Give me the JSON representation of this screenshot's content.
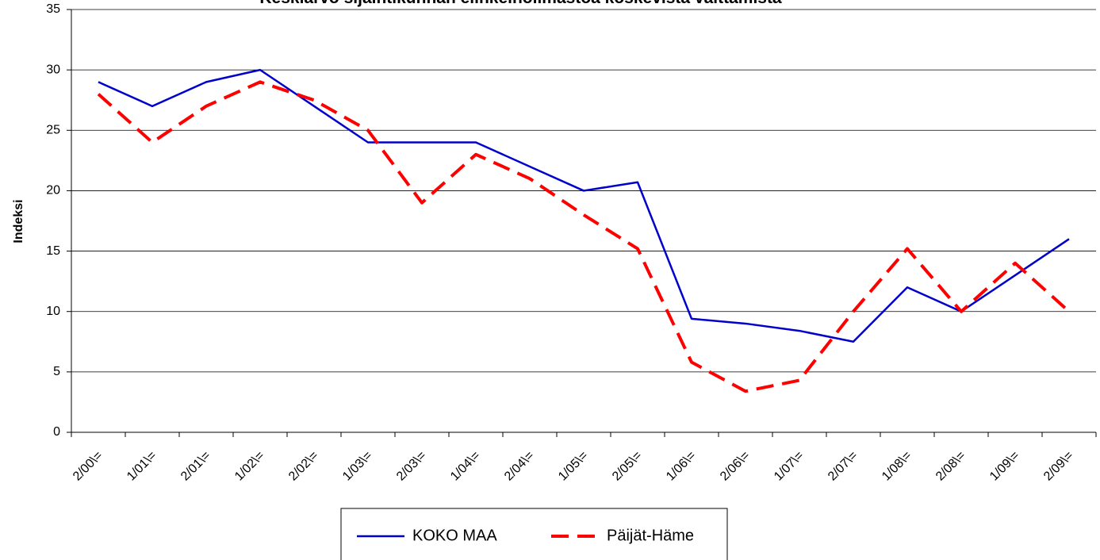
{
  "chart_data": {
    "type": "line",
    "title": "Keskiarvo sijaintikunnan elinkeinoilmastoa koskevista väittämistä-",
    "y_label": "Indeksi",
    "categories": [
      "2/00\\=",
      "1/01\\=",
      "2/01\\=",
      "1/02\\=",
      "2/02\\=",
      "1/03\\=",
      "2/03\\=",
      "1/04\\=",
      "2/04\\=",
      "1/05\\=",
      "2/05\\=",
      "1/06\\=",
      "2/06\\=",
      "1/07\\=",
      "2/07\\=",
      "1/08\\=",
      "2/08\\=",
      "1/09\\=",
      "2/09\\="
    ],
    "series": [
      {
        "name": "KOKO MAA",
        "color": "#0000cc",
        "dashed": false,
        "values": [
          29,
          27,
          29,
          30,
          27,
          24,
          24,
          24,
          22,
          20,
          20.7,
          9.4,
          9,
          8.4,
          7.5,
          12,
          10,
          13,
          16
        ]
      },
      {
        "name": "Päijät-Häme",
        "color": "#ff0000",
        "dashed": true,
        "values": [
          28,
          24,
          27,
          29,
          27.5,
          25,
          19,
          23,
          21,
          18,
          15.2,
          5.8,
          3.4,
          4.3,
          10,
          15.2,
          10,
          14,
          10
        ]
      }
    ],
    "ylim": [
      0,
      35
    ],
    "yticks": [
      0,
      5,
      10,
      15,
      20,
      25,
      30,
      35
    ],
    "grid": true
  }
}
